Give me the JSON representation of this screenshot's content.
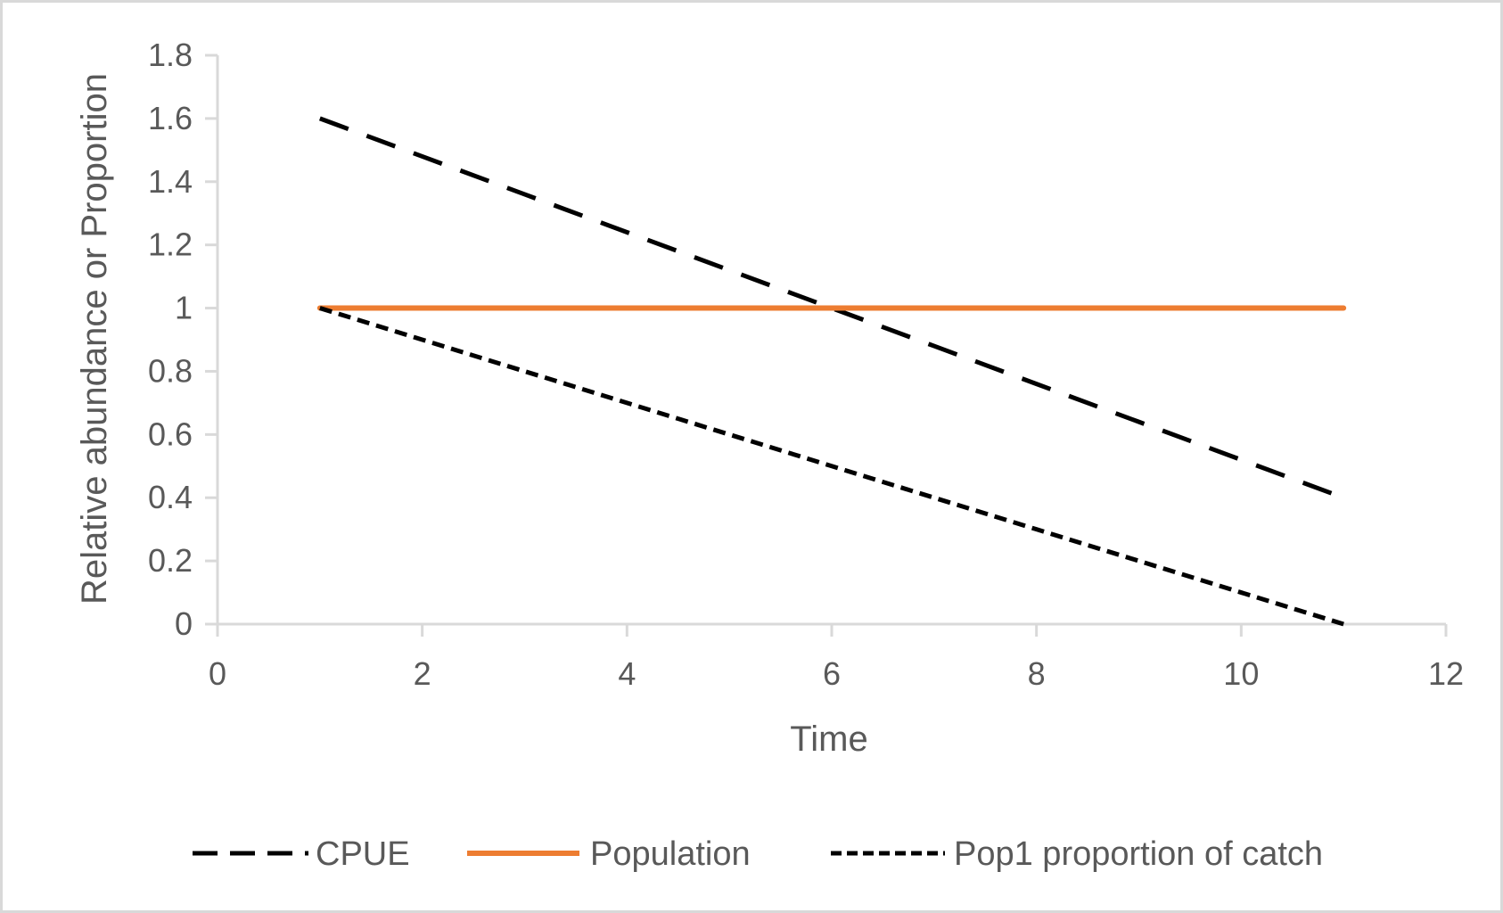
{
  "chart_data": {
    "type": "line",
    "title": "",
    "xlabel": "Time",
    "ylabel": "Relative abundance or Proportion",
    "xlim": [
      0,
      12
    ],
    "ylim": [
      0,
      1.8
    ],
    "xticks": [
      0,
      2,
      4,
      6,
      8,
      10,
      12
    ],
    "yticks": [
      0,
      0.2,
      0.4,
      0.6,
      0.8,
      1,
      1.2,
      1.4,
      1.6,
      1.8
    ],
    "xtick_labels": [
      "0",
      "2",
      "4",
      "6",
      "8",
      "10",
      "12"
    ],
    "ytick_labels": [
      "0",
      "0.2",
      "0.4",
      "0.6",
      "0.8",
      "1",
      "1.2",
      "1.4",
      "1.6",
      "1.8"
    ],
    "grid": false,
    "legend_position": "bottom",
    "series": [
      {
        "name": "CPUE",
        "color": "#000000",
        "style": "long-dash",
        "x": [
          1,
          2,
          3,
          4,
          5,
          6,
          7,
          8,
          9,
          10,
          11
        ],
        "y": [
          1.6,
          1.48,
          1.36,
          1.24,
          1.12,
          1.0,
          0.88,
          0.76,
          0.64,
          0.52,
          0.4
        ]
      },
      {
        "name": "Population",
        "color": "#ED7D31",
        "style": "solid",
        "x": [
          1,
          2,
          3,
          4,
          5,
          6,
          7,
          8,
          9,
          10,
          11
        ],
        "y": [
          1,
          1,
          1,
          1,
          1,
          1,
          1,
          1,
          1,
          1,
          1
        ]
      },
      {
        "name": "Pop1 proportion of catch",
        "color": "#000000",
        "style": "short-dash",
        "x": [
          1,
          2,
          3,
          4,
          5,
          6,
          7,
          8,
          9,
          10,
          11
        ],
        "y": [
          1.0,
          0.9,
          0.8,
          0.7,
          0.6,
          0.5,
          0.4,
          0.3,
          0.2,
          0.1,
          0.0
        ]
      }
    ]
  }
}
